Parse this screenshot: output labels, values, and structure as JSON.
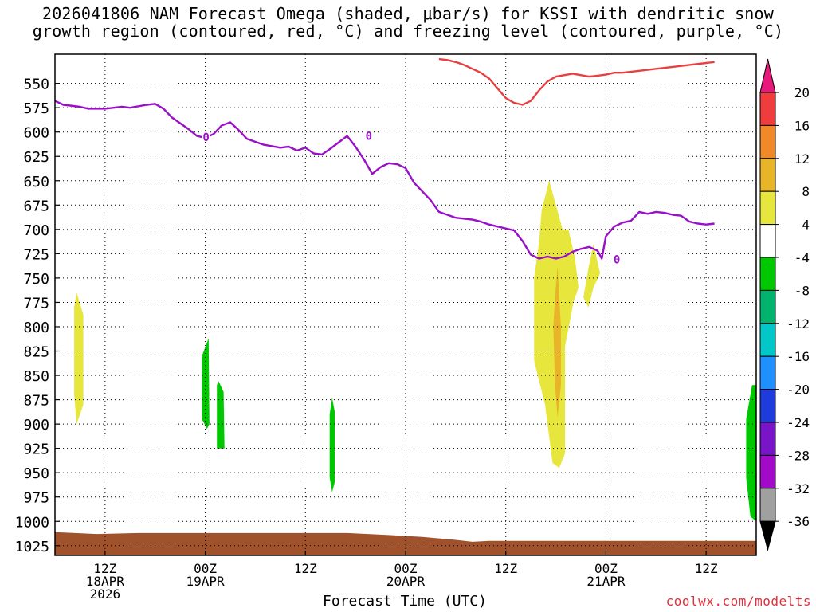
{
  "title_line1": "2026041806 NAM Forecast Omega (shaded, μbar/s) for KSSI with dendritic snow",
  "title_line2": "growth region (contoured, red, °C) and freezing level (contoured, purple, °C)",
  "credit": "coolwx.com/modelts",
  "chart_data": {
    "type": "time-height",
    "title": "2026041806 NAM Forecast Omega (shaded, μbar/s) for KSSI with dendritic snow growth region (contoured, red, °C) and freezing level (contoured, purple, °C)",
    "xlabel": "Forecast Time (UTC)",
    "ylabel": "",
    "x_unit": "hours from 2026041806",
    "xlim": [
      0,
      84
    ],
    "y_ticks": [
      550,
      575,
      600,
      625,
      650,
      675,
      700,
      725,
      750,
      775,
      800,
      825,
      850,
      875,
      900,
      925,
      950,
      975,
      1000,
      1025
    ],
    "ylim": [
      1035,
      520
    ],
    "grid": true,
    "x_ticks": [
      {
        "x": 6,
        "lines": [
          "12Z",
          "18APR",
          "2026"
        ]
      },
      {
        "x": 18,
        "lines": [
          "00Z",
          "19APR"
        ]
      },
      {
        "x": 30,
        "lines": [
          "12Z"
        ]
      },
      {
        "x": 42,
        "lines": [
          "00Z",
          "20APR"
        ]
      },
      {
        "x": 54,
        "lines": [
          "12Z"
        ]
      },
      {
        "x": 66,
        "lines": [
          "00Z",
          "21APR"
        ]
      },
      {
        "x": 78,
        "lines": [
          "12Z"
        ]
      }
    ],
    "colorbar": {
      "labels": [
        "20",
        "16",
        "12",
        "8",
        "4",
        "-4",
        "-8",
        "-12",
        "-16",
        "-20",
        "-24",
        "-28",
        "-32",
        "-36"
      ],
      "colors": [
        "#e8197a",
        "#f03c3c",
        "#f08a28",
        "#e8b428",
        "#e6e63c",
        "#ffffff",
        "#00c800",
        "#00b46e",
        "#00c8c8",
        "#1e90ff",
        "#1e3cdc",
        "#7a14c8",
        "#a00ac8",
        "#a0a0a0",
        "#000000"
      ]
    },
    "series": [
      {
        "name": "0",
        "color": "#9a10c8",
        "points": [
          [
            0,
            568
          ],
          [
            1,
            572
          ],
          [
            3,
            574
          ],
          [
            4,
            576
          ],
          [
            6,
            576
          ],
          [
            8,
            574
          ],
          [
            9,
            575
          ],
          [
            11,
            572
          ],
          [
            12,
            571
          ],
          [
            13,
            576
          ],
          [
            14,
            585
          ],
          [
            16,
            597
          ],
          [
            17,
            604
          ],
          [
            18,
            606
          ],
          [
            19,
            602
          ],
          [
            20,
            593
          ],
          [
            21,
            590
          ],
          [
            22,
            598
          ],
          [
            23,
            607
          ],
          [
            25,
            613
          ],
          [
            27,
            616
          ],
          [
            28,
            615
          ],
          [
            29,
            619
          ],
          [
            30,
            616
          ],
          [
            31,
            622
          ],
          [
            32,
            623
          ],
          [
            33,
            617
          ],
          [
            35,
            604
          ],
          [
            36,
            615
          ],
          [
            37,
            628
          ],
          [
            38,
            643
          ],
          [
            39,
            636
          ],
          [
            40,
            632
          ],
          [
            41,
            633
          ],
          [
            42,
            637
          ],
          [
            43,
            652
          ],
          [
            45,
            670
          ],
          [
            46,
            682
          ],
          [
            48,
            688
          ],
          [
            50,
            690
          ],
          [
            51,
            692
          ],
          [
            52,
            695
          ],
          [
            53,
            697
          ],
          [
            55,
            701
          ],
          [
            56,
            712
          ],
          [
            57,
            726
          ],
          [
            58,
            730
          ],
          [
            59,
            728
          ],
          [
            60,
            730
          ],
          [
            61,
            728
          ],
          [
            62,
            723
          ],
          [
            63,
            720
          ],
          [
            64,
            718
          ],
          [
            65,
            722
          ],
          [
            65.5,
            730
          ],
          [
            66,
            707
          ],
          [
            67,
            697
          ],
          [
            68,
            693
          ],
          [
            69,
            691
          ],
          [
            70,
            682
          ],
          [
            71,
            684
          ],
          [
            72,
            682
          ],
          [
            73,
            683
          ],
          [
            74,
            685
          ],
          [
            75,
            686
          ],
          [
            76,
            692
          ],
          [
            77,
            694
          ],
          [
            78,
            695
          ],
          [
            79,
            694
          ]
        ]
      },
      {
        "name": "",
        "color": "#e84040",
        "points": [
          [
            46,
            525
          ],
          [
            47,
            526
          ],
          [
            48,
            528
          ],
          [
            49,
            531
          ],
          [
            50,
            535
          ],
          [
            51,
            539
          ],
          [
            52,
            545
          ],
          [
            53,
            555
          ],
          [
            54,
            565
          ],
          [
            55,
            570
          ],
          [
            56,
            572
          ],
          [
            57,
            568
          ],
          [
            58,
            557
          ],
          [
            59,
            548
          ],
          [
            60,
            543
          ],
          [
            62,
            540
          ],
          [
            64,
            543
          ],
          [
            65,
            542
          ],
          [
            66,
            541
          ],
          [
            67,
            539
          ],
          [
            68,
            539
          ],
          [
            70,
            537
          ],
          [
            72,
            535
          ],
          [
            74,
            533
          ],
          [
            76,
            531
          ],
          [
            78,
            529
          ],
          [
            79,
            528
          ]
        ]
      }
    ],
    "regions": [
      {
        "color": "#e6e63c",
        "points": [
          [
            2.6,
            765
          ],
          [
            3.4,
            788
          ],
          [
            3.4,
            880
          ],
          [
            2.6,
            900
          ],
          [
            2.3,
            870
          ],
          [
            2.3,
            780
          ]
        ]
      },
      {
        "color": "#00c800",
        "points": [
          [
            18.4,
            812
          ],
          [
            18.5,
            900
          ],
          [
            18.2,
            905
          ],
          [
            17.6,
            895
          ],
          [
            17.6,
            830
          ]
        ]
      },
      {
        "color": "#00c800",
        "points": [
          [
            19.6,
            856
          ],
          [
            20.2,
            867
          ],
          [
            20.3,
            925
          ],
          [
            19.4,
            925
          ],
          [
            19.4,
            860
          ]
        ]
      },
      {
        "color": "#00c800",
        "points": [
          [
            33.2,
            873
          ],
          [
            33.5,
            887
          ],
          [
            33.5,
            960
          ],
          [
            33.2,
            970
          ],
          [
            32.9,
            955
          ],
          [
            32.9,
            890
          ]
        ]
      },
      {
        "color": "#e6e63c",
        "points": [
          [
            59.2,
            650
          ],
          [
            60.8,
            700
          ],
          [
            61.5,
            700
          ],
          [
            62.3,
            730
          ],
          [
            62.7,
            760
          ],
          [
            62.1,
            775
          ],
          [
            61.1,
            820
          ],
          [
            61.1,
            930
          ],
          [
            60.4,
            945
          ],
          [
            59.6,
            940
          ],
          [
            58.7,
            880
          ],
          [
            57.4,
            835
          ],
          [
            57.4,
            750
          ],
          [
            58,
            712
          ],
          [
            58.3,
            680
          ]
        ]
      },
      {
        "color": "#e6e63c",
        "points": [
          [
            64.5,
            715
          ],
          [
            65.3,
            745
          ],
          [
            64.5,
            760
          ],
          [
            63.9,
            780
          ],
          [
            63.3,
            770
          ],
          [
            63.9,
            740
          ]
        ]
      },
      {
        "color": "#e8b428",
        "points": [
          [
            60.2,
            738
          ],
          [
            60.6,
            800
          ],
          [
            60.6,
            860
          ],
          [
            60.2,
            893
          ],
          [
            59.9,
            860
          ],
          [
            59.7,
            800
          ],
          [
            59.9,
            770
          ]
        ]
      },
      {
        "color": "#00c800",
        "points": [
          [
            84,
            860
          ],
          [
            84,
            1000
          ],
          [
            83.3,
            995
          ],
          [
            82.8,
            955
          ],
          [
            82.8,
            895
          ],
          [
            83.5,
            860
          ]
        ]
      }
    ],
    "surface": {
      "color": "#a0522d",
      "top": [
        [
          0,
          1011
        ],
        [
          5,
          1013
        ],
        [
          10,
          1012
        ],
        [
          22,
          1012
        ],
        [
          35,
          1012
        ],
        [
          40,
          1014
        ],
        [
          44,
          1016
        ],
        [
          48,
          1019
        ],
        [
          50,
          1021
        ],
        [
          52,
          1020
        ],
        [
          58,
          1020
        ],
        [
          70,
          1020
        ],
        [
          84,
          1020
        ]
      ]
    },
    "labels": [
      {
        "text": "0",
        "x": 18.1,
        "y": 605
      },
      {
        "text": "0",
        "x": 37.6,
        "y": 604
      },
      {
        "text": "0",
        "x": 67.3,
        "y": 731
      }
    ]
  }
}
